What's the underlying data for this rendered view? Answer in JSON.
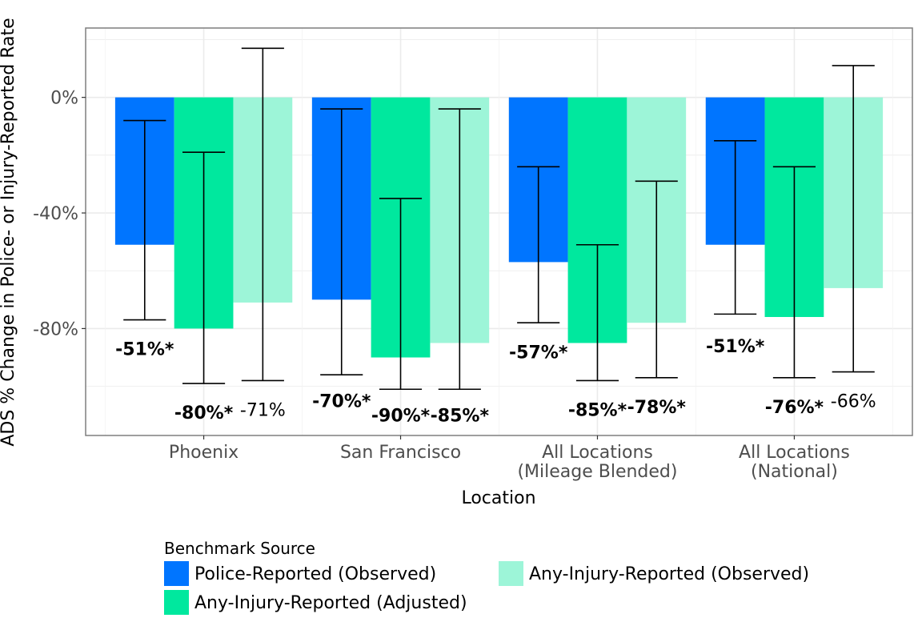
{
  "chart_data": {
    "type": "bar",
    "xlabel": "Location",
    "ylabel": "ADS % Change in Police- or Injury-Reported Rate",
    "ylim": [
      -117,
      24
    ],
    "y_ticks": [
      0,
      -40,
      -80
    ],
    "y_tick_labels": [
      "0%",
      "-40%",
      "-80%"
    ],
    "categories": [
      [
        "Phoenix"
      ],
      [
        "San Francisco"
      ],
      [
        "All Locations",
        "(Mileage Blended)"
      ],
      [
        "All Locations",
        "(National)"
      ]
    ],
    "legend_title": "Benchmark Source",
    "legend_position": "bottom",
    "series": [
      {
        "name": "Police-Reported (Observed)",
        "color": "#0075ff",
        "values": [
          -51,
          -70,
          -57,
          -51
        ],
        "err_low": [
          -77,
          -96,
          -78,
          -75
        ],
        "err_high": [
          -8,
          -4,
          -24,
          -15
        ],
        "labels": [
          "-51%*",
          "-70%*",
          "-57%*",
          "-51%*"
        ],
        "label_y": [
          -87,
          -105,
          -88,
          -86
        ],
        "bold": [
          true,
          true,
          true,
          true
        ]
      },
      {
        "name": "Any-Injury-Reported (Adjusted)",
        "color": "#00e89e",
        "values": [
          -80,
          -90,
          -85,
          -76
        ],
        "err_low": [
          -99,
          -101,
          -98,
          -97
        ],
        "err_high": [
          -19,
          -35,
          -51,
          -24
        ],
        "labels": [
          "-80%*",
          "-90%*",
          "-85%*",
          "-76%*"
        ],
        "label_y": [
          -109,
          -110,
          -108,
          -107
        ],
        "bold": [
          true,
          true,
          true,
          true
        ]
      },
      {
        "name": "Any-Injury-Reported (Observed)",
        "color": "#9df5d8",
        "values": [
          -71,
          -85,
          -78,
          -66
        ],
        "err_low": [
          -98,
          -101,
          -97,
          -95
        ],
        "err_high": [
          17,
          -4,
          -29,
          11
        ],
        "labels": [
          "-71%",
          "-85%*",
          "-78%*",
          "-66%"
        ],
        "label_y": [
          -108,
          -110,
          -107,
          -105
        ],
        "bold": [
          false,
          true,
          true,
          false
        ]
      }
    ]
  }
}
